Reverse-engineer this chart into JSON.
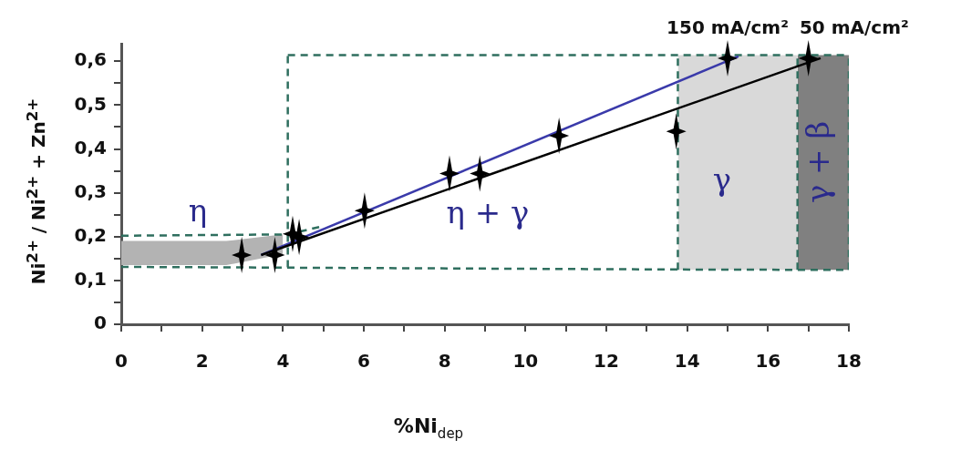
{
  "chart_data": {
    "type": "scatter",
    "xlabel": "%Ni$_{dep}$",
    "ylabel": "Ni$^{2+}$ / Ni$^{2+}$ + Zn$^{2+}$",
    "xlim": [
      0,
      18
    ],
    "xticks": [
      0,
      {
        "value": 1,
        "label": null
      },
      2,
      {
        "value": 3,
        "label": null
      },
      4,
      {
        "value": 5,
        "label": null
      },
      6,
      {
        "value": 7,
        "label": null
      },
      8,
      {
        "value": 9,
        "label": null
      },
      10,
      {
        "value": 11,
        "label": null
      },
      12,
      {
        "value": 13,
        "label": null
      },
      14,
      {
        "value": 15,
        "label": null
      },
      16,
      {
        "value": 17,
        "label": null
      },
      18
    ],
    "ylim": [
      0,
      0.64
    ],
    "yticks": [
      {
        "value": 0,
        "label": "0"
      },
      {
        "value": 0.05,
        "label": null
      },
      {
        "value": 0.1,
        "label": "0,1"
      },
      {
        "value": 0.15,
        "label": null
      },
      {
        "value": 0.2,
        "label": "0,2"
      },
      {
        "value": 0.25,
        "label": null
      },
      {
        "value": 0.3,
        "label": "0,3"
      },
      {
        "value": 0.35,
        "label": null
      },
      {
        "value": 0.4,
        "label": "0,4"
      },
      {
        "value": 0.45,
        "label": null
      },
      {
        "value": 0.5,
        "label": "0,5"
      },
      {
        "value": 0.55,
        "label": null
      },
      {
        "value": 0.6,
        "label": "0,6"
      }
    ],
    "grid": false,
    "legend": false,
    "series": [
      {
        "type": "line",
        "color": "#b3b3b3",
        "x": [
          0,
          2.6,
          4.0
        ],
        "values": [
          null,
          null,
          null
        ],
        "lower": [
          0.135,
          0.135,
          0.16
        ],
        "upper": [
          0.19,
          0.19,
          0.205
        ]
      },
      {
        "type": "line",
        "color": "#d9d9d9",
        "x": [
          13.77,
          16.73
        ],
        "values": [
          null,
          null
        ],
        "lower": [
          0.124,
          0.124
        ],
        "upper": [
          0.614,
          0.614
        ]
      },
      {
        "type": "line",
        "color": "#808080",
        "x": [
          16.73,
          18
        ],
        "values": [
          null,
          null
        ],
        "lower": [
          0.124,
          0.124
        ],
        "upper": [
          0.614,
          0.614
        ]
      },
      {
        "type": "line",
        "color": "#2f6f5f",
        "line_style": "dashed",
        "x": [
          0,
          4.12,
          4.9
        ],
        "values": [
          0.202,
          0.205,
          0.222
        ]
      },
      {
        "type": "line",
        "color": "#2f6f5f",
        "line_style": "dashed",
        "x": [
          0,
          13.7,
          18
        ],
        "values": [
          0.131,
          0.125,
          0.124
        ]
      },
      {
        "type": "line",
        "color": "#2f6f5f",
        "line_style": "dashed",
        "x": [
          4.12,
          18
        ],
        "values": [
          0.614,
          0.614
        ]
      },
      {
        "type": "line",
        "color": "#2f6f5f",
        "line_style": "dashed",
        "x": [
          4.12,
          4.12
        ],
        "values": [
          0.13,
          0.614
        ]
      },
      {
        "type": "line",
        "color": "#2f6f5f",
        "line_style": "dashed",
        "x": [
          18,
          18
        ],
        "values": [
          0.124,
          0.614
        ]
      },
      {
        "type": "line",
        "color": "#2f6f5f",
        "line_style": "dashed",
        "x": [
          13.77,
          13.77
        ],
        "values": [
          0.124,
          0.614
        ]
      },
      {
        "type": "line",
        "color": "#2f6f5f",
        "line_style": "dashed",
        "x": [
          16.73,
          16.73
        ],
        "values": [
          0.124,
          0.614
        ]
      },
      {
        "type": "line",
        "color": "#3a3aaa",
        "x": [
          3.46,
          15.27
        ],
        "values": [
          0.158,
          0.611
        ]
      },
      {
        "type": "line",
        "color": "#000000",
        "x": [
          3.46,
          17.3
        ],
        "values": [
          0.158,
          0.607
        ]
      },
      {
        "marker": "star",
        "color": "#000000",
        "x": [
          2.98,
          3.8,
          4.24,
          4.4,
          6.02,
          8.12,
          8.87,
          10.83,
          13.73,
          15.0,
          17.0
        ],
        "values": [
          0.158,
          0.158,
          0.206,
          0.199,
          0.259,
          0.344,
          0.344,
          0.43,
          0.44,
          0.607,
          0.607
        ]
      }
    ],
    "annotations": [
      {
        "text": "150 mA/cm²",
        "x": 15.0,
        "y": 0.607
      },
      {
        "text": "50 mA/cm²",
        "x": 17.0,
        "y": 0.607
      },
      "η",
      "η + γ",
      "γ",
      "γ + β"
    ]
  }
}
